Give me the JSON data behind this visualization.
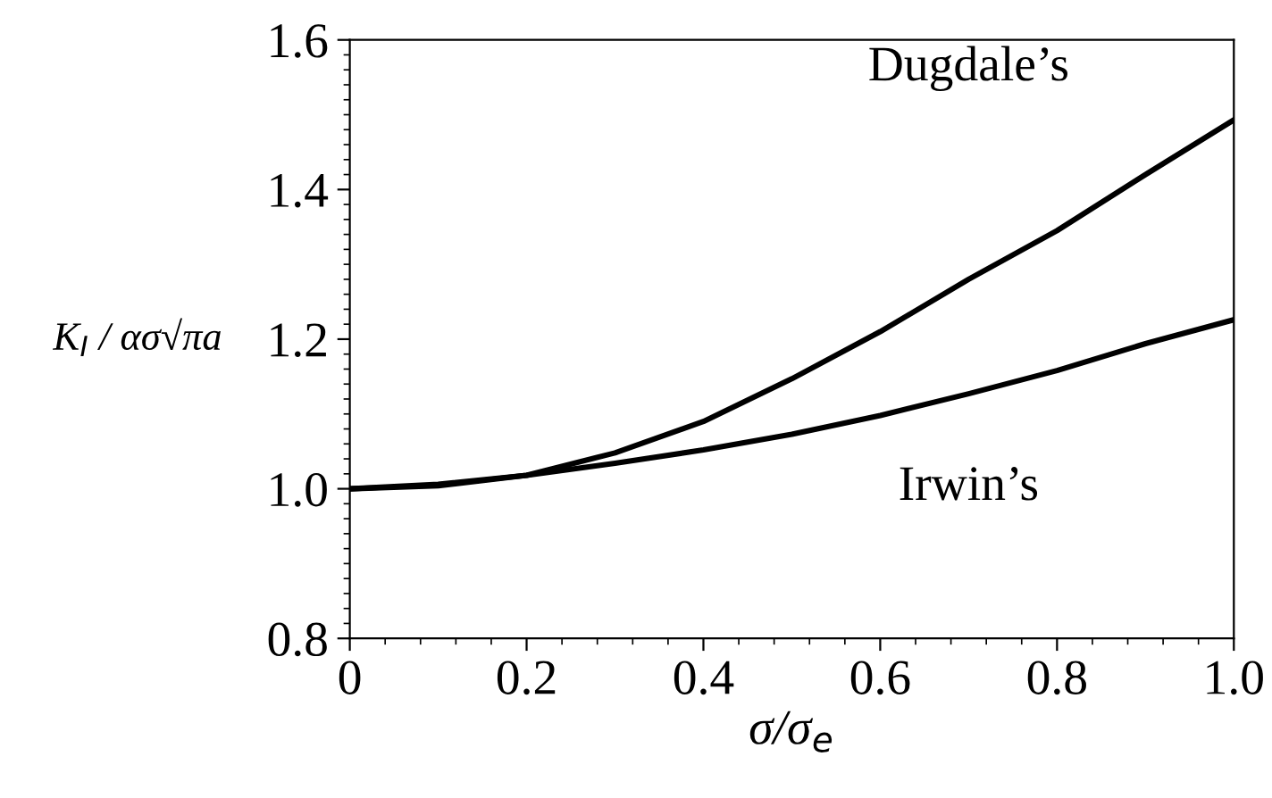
{
  "chart_data": {
    "type": "line",
    "xlabel": "σ/σ$_{e}$",
    "ylabel": "K$_{I}$ / ασ√πa",
    "x": [
      0,
      0.1,
      0.2,
      0.3,
      0.4,
      0.5,
      0.6,
      0.7,
      0.8,
      0.9,
      1.0
    ],
    "series": [
      {
        "name": "Dugdale’s",
        "color": "#000000",
        "values": [
          1.0,
          1.004,
          1.018,
          1.048,
          1.09,
          1.147,
          1.21,
          1.28,
          1.345,
          1.42,
          1.493
        ]
      },
      {
        "name": "Irwin’s",
        "color": "#000000",
        "values": [
          1.0,
          1.006,
          1.018,
          1.034,
          1.052,
          1.073,
          1.098,
          1.127,
          1.158,
          1.194,
          1.226
        ]
      }
    ],
    "xlim": [
      0,
      1.0
    ],
    "xticks": [
      0,
      0.2,
      0.4,
      0.6,
      0.8,
      {
        "value": 1.0,
        "label": "1.0"
      }
    ],
    "ylim": [
      0.8,
      1.6
    ],
    "yticks": [
      0.8,
      {
        "value": 1.0,
        "label": "1.0"
      },
      1.2,
      1.4,
      1.6
    ],
    "grid": false,
    "legend": false,
    "marker": "none",
    "line_style": "solid"
  }
}
